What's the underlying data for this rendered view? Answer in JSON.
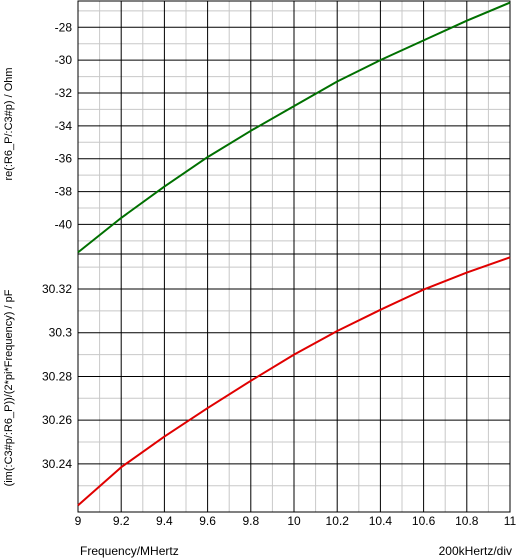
{
  "chart_data": [
    {
      "type": "line",
      "ylabel": "re(:R6_P/:C3#p) / Ohm",
      "xlim": [
        9,
        11
      ],
      "ylim": [
        -41.8,
        -26.4
      ],
      "y_ticks": [
        -40,
        -38,
        -36,
        -34,
        -32,
        -30,
        -28
      ],
      "y_tick_labels": [
        "-40",
        "-38",
        "-36",
        "-34",
        "-32",
        "-30",
        "-28"
      ],
      "grid": true,
      "series": [
        {
          "color": "#007000",
          "x": [
            9.0,
            9.2,
            9.4,
            9.6,
            9.8,
            10.0,
            10.2,
            10.4,
            10.6,
            10.8,
            11.0
          ],
          "y": [
            -41.7,
            -39.6,
            -37.7,
            -35.9,
            -34.3,
            -32.8,
            -31.3,
            -30.0,
            -28.8,
            -27.6,
            -26.5
          ]
        }
      ]
    },
    {
      "type": "line",
      "ylabel": "(im(:C3#p/:R6_P))/(2*pi*Frequency) / pF",
      "xlabel": "Frequency/MHertz",
      "xlim": [
        9,
        11
      ],
      "ylim": [
        30.218,
        30.336
      ],
      "x_ticks": [
        9,
        9.2,
        9.4,
        9.6,
        9.8,
        10,
        10.2,
        10.4,
        10.6,
        10.8,
        11
      ],
      "x_tick_labels": [
        "9",
        "9.2",
        "9.4",
        "9.6",
        "9.8",
        "10",
        "10.2",
        "10.4",
        "10.6",
        "10.8",
        "11"
      ],
      "y_ticks": [
        30.24,
        30.26,
        30.28,
        30.3,
        30.32
      ],
      "y_tick_labels": [
        "30.24",
        "30.26",
        "30.28",
        "30.3",
        "30.32"
      ],
      "grid": true,
      "series": [
        {
          "color": "#e00000",
          "x": [
            9.0,
            9.2,
            9.4,
            9.6,
            9.8,
            10.0,
            10.2,
            10.4,
            10.6,
            10.8,
            11.0
          ],
          "y": [
            30.221,
            30.2385,
            30.2525,
            30.2655,
            30.278,
            30.29,
            30.3008,
            30.3105,
            30.3197,
            30.3275,
            30.3345
          ]
        }
      ]
    }
  ],
  "footer": {
    "xlabel": "Frequency/MHertz",
    "scale_label": "200kHertz/div"
  }
}
